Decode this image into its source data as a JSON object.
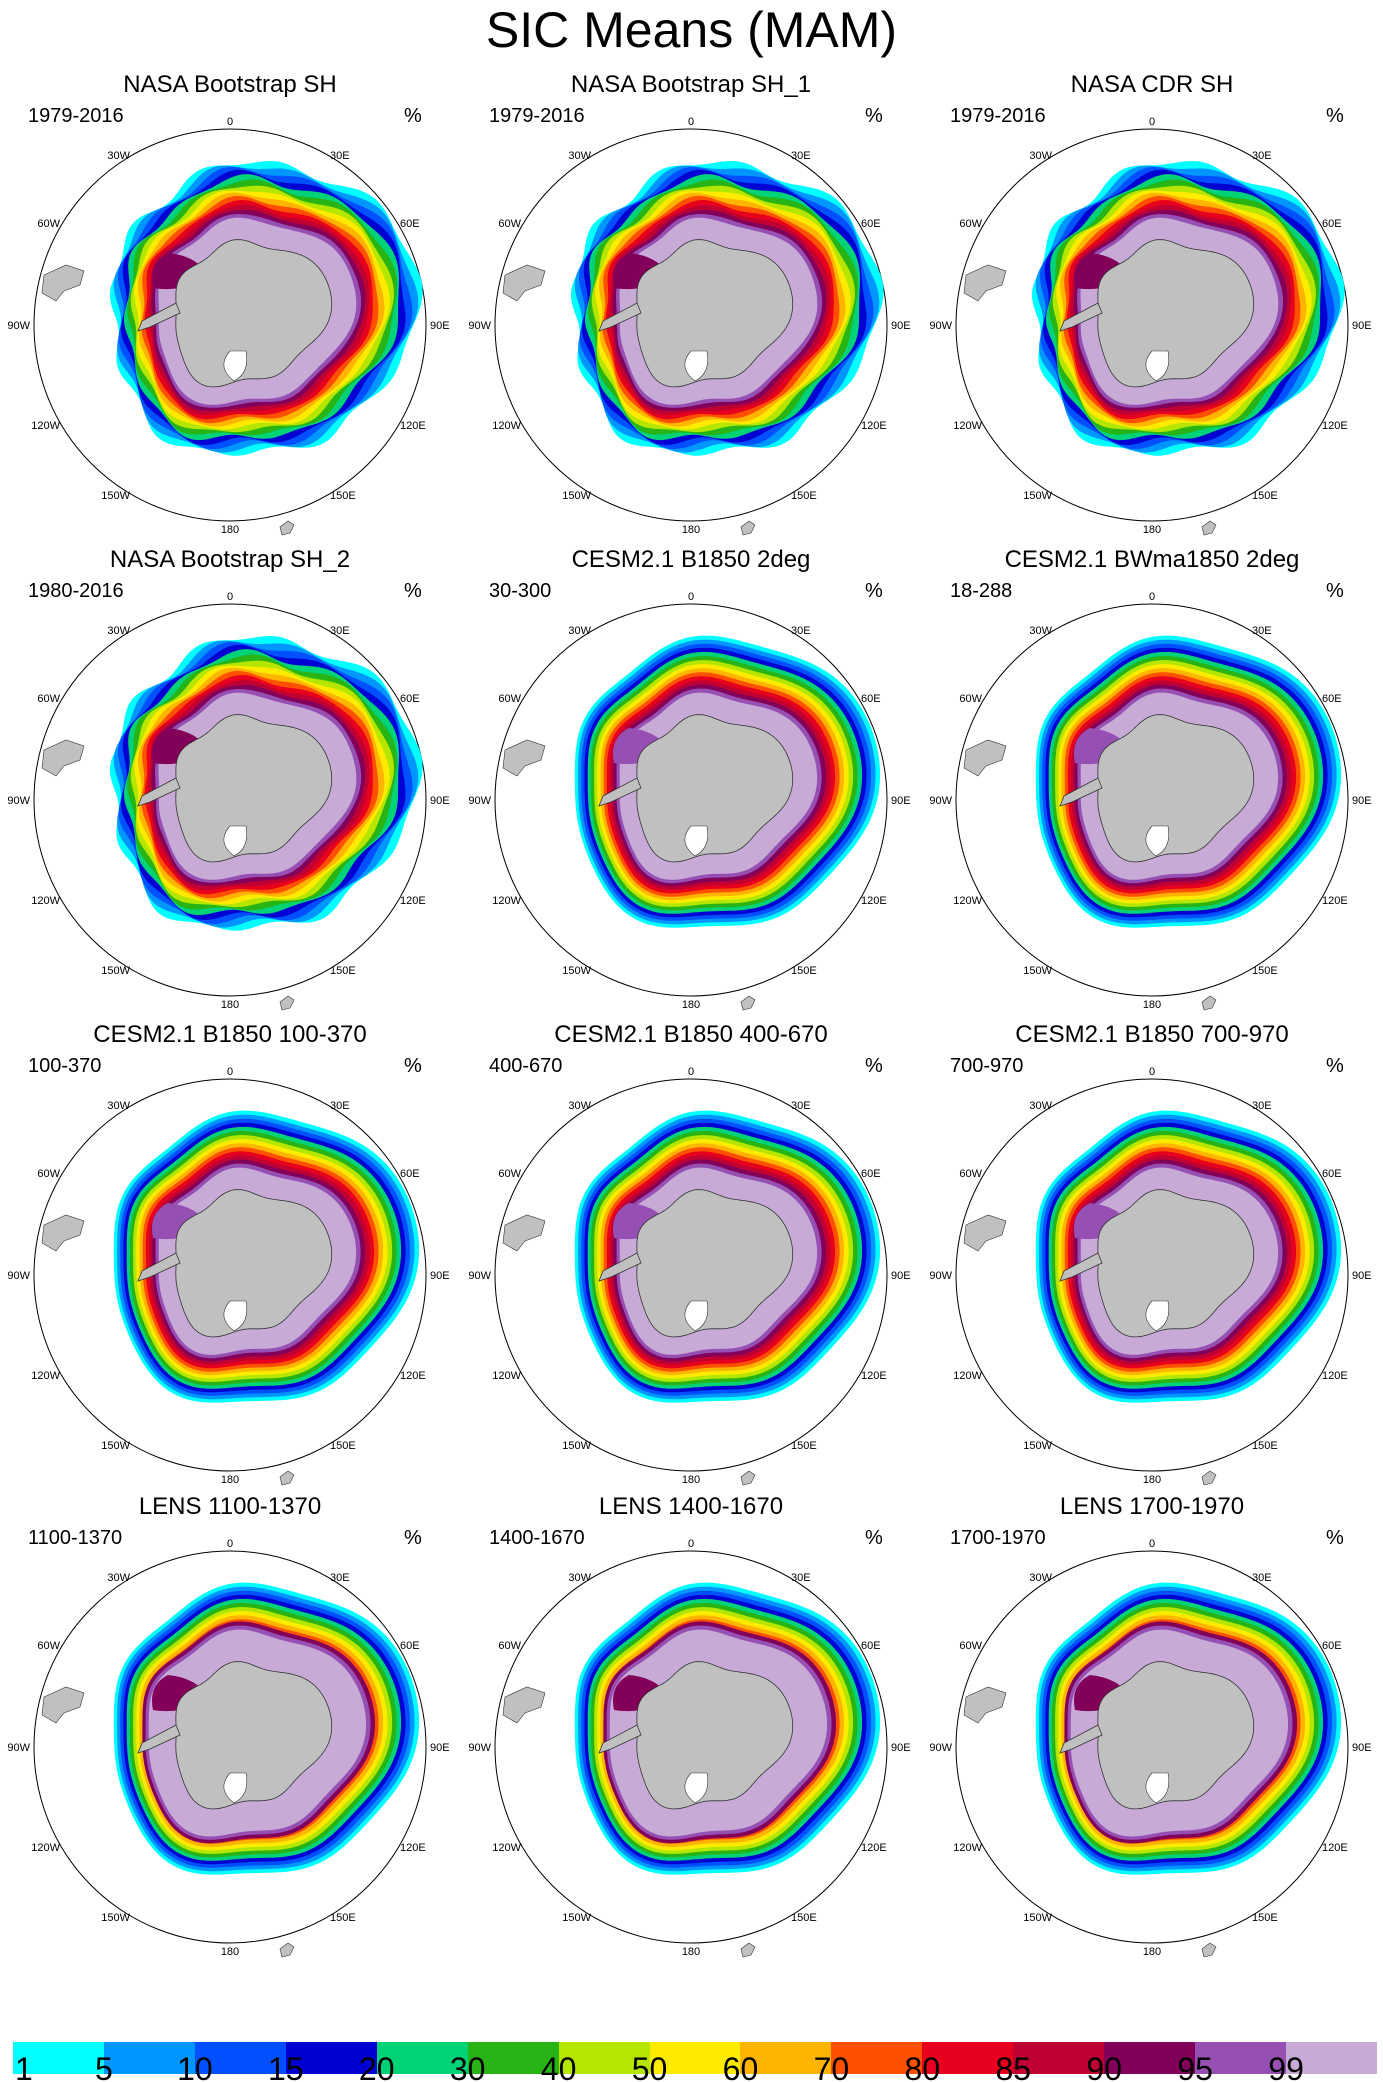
{
  "figure": {
    "title": "SIC Means (MAM)",
    "unit_label": "%",
    "lon_labels": {
      "top": "0",
      "bottom": "180",
      "l1": "30W",
      "l2": "60W",
      "l3": "90W",
      "l4": "120W",
      "l5": "150W",
      "r1": "30E",
      "r2": "60E",
      "r3": "90E",
      "r4": "120E",
      "r5": "150E"
    }
  },
  "panels": [
    {
      "title": "NASA Bootstrap SH",
      "years": "1979-2016"
    },
    {
      "title": "NASA Bootstrap SH_1",
      "years": "1979-2016"
    },
    {
      "title": "NASA CDR SH",
      "years": "1979-2016"
    },
    {
      "title": "NASA Bootstrap SH_2",
      "years": "1980-2016"
    },
    {
      "title": "CESM2.1 B1850 2deg",
      "years": "30-300"
    },
    {
      "title": "CESM2.1 BWma1850 2deg",
      "years": "18-288"
    },
    {
      "title": "CESM2.1 B1850 100-370",
      "years": "100-370"
    },
    {
      "title": "CESM2.1 B1850 400-670",
      "years": "400-670"
    },
    {
      "title": "CESM2.1 B1850 700-970",
      "years": "700-970"
    },
    {
      "title": "LENS 1100-1370",
      "years": "1100-1370"
    },
    {
      "title": "LENS 1400-1670",
      "years": "1400-1670"
    },
    {
      "title": "LENS 1700-1970",
      "years": "1700-1970"
    }
  ],
  "colorbar": {
    "ticks": [
      "1",
      "5",
      "10",
      "15",
      "20",
      "30",
      "40",
      "50",
      "60",
      "70",
      "80",
      "85",
      "90",
      "95",
      "99"
    ],
    "colors": [
      "#00ffff",
      "#0096ff",
      "#0050ff",
      "#0000d2",
      "#00d278",
      "#28b414",
      "#b4e600",
      "#ffeb00",
      "#ffb400",
      "#ff5000",
      "#e6001e",
      "#be0032",
      "#82005a",
      "#9650b4",
      "#c8aad7"
    ]
  },
  "map_colors": {
    "land": "#c0c0c0",
    "ocean": "#ffffff"
  }
}
